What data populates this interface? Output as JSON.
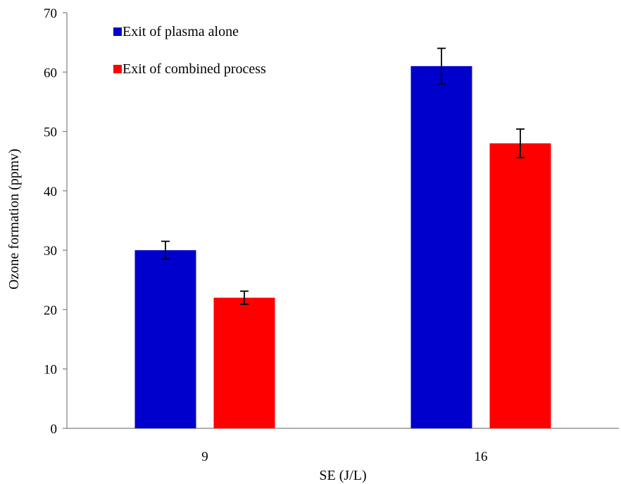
{
  "chart_data": {
    "type": "bar",
    "categories": [
      "9",
      "16"
    ],
    "series": [
      {
        "name": "Exit of plasma alone",
        "color": "#0000CC",
        "values": [
          30,
          61
        ],
        "errors": [
          1.5,
          3
        ]
      },
      {
        "name": "Exit of combined process",
        "color": "#FF0000",
        "values": [
          22,
          48
        ],
        "errors": [
          1.1,
          2.4
        ]
      }
    ],
    "xlabel": "SE (J/L)",
    "ylabel": "Ozone formation (ppmv)",
    "ylim": [
      0,
      70
    ],
    "yticks": [
      "0",
      "10",
      "20",
      "30",
      "40",
      "50",
      "60",
      "70"
    ],
    "grid": false,
    "legend": "top-left"
  }
}
